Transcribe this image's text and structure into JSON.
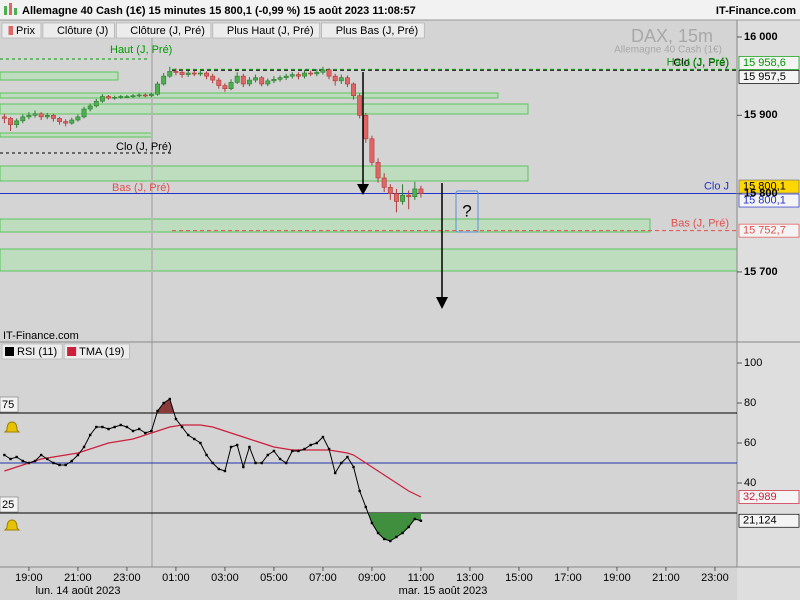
{
  "header": {
    "title": "Allemagne 40 Cash (1€) 15 minutes 15 800,1 (-0,99 %) 15 août 2023 11:08:57",
    "brand": "IT-Finance.com"
  },
  "annotations": {
    "question_mark": "?",
    "previous_day_labels": [
      "Haut (J, Pré)",
      "Clo (J, Pré)",
      "Bas (J, Pré)"
    ]
  },
  "chart_data": [
    {
      "type": "candlestick",
      "watermark": "DAX, 15m",
      "subwatermark": "Allemagne 40 Cash (1€)",
      "price_name": "Prix",
      "up_color": "#4caf50",
      "down_color": "#e06666",
      "last_value_label": "15 800,1",
      "last_color": "#ffd700",
      "x": [
        18,
        18.25,
        18.5,
        18.75,
        19,
        19.25,
        19.5,
        19.75,
        20,
        20.25,
        20.5,
        20.75,
        21,
        21.25,
        21.5,
        21.75,
        22,
        22.25,
        22.5,
        22.75,
        23,
        23.25,
        23.5,
        23.75,
        24,
        24.25,
        24.5,
        24.75,
        25,
        25.25,
        25.5,
        25.75,
        26,
        26.25,
        26.5,
        26.75,
        27,
        27.25,
        27.5,
        27.75,
        28,
        28.25,
        28.5,
        28.75,
        29,
        29.25,
        29.5,
        29.75,
        30,
        30.25,
        30.5,
        30.75,
        31,
        31.25,
        31.5,
        31.75,
        32,
        32.25,
        32.5,
        32.75,
        33,
        33.25,
        33.5,
        33.75,
        34,
        34.25,
        34.5,
        34.75,
        35
      ],
      "ohlc": [
        [
          15898,
          15902,
          15890,
          15896
        ],
        [
          15896,
          15898,
          15880,
          15888
        ],
        [
          15888,
          15896,
          15884,
          15893
        ],
        [
          15893,
          15901,
          15890,
          15898
        ],
        [
          15898,
          15904,
          15895,
          15900
        ],
        [
          15900,
          15906,
          15897,
          15902
        ],
        [
          15902,
          15904,
          15894,
          15898
        ],
        [
          15898,
          15903,
          15895,
          15900
        ],
        [
          15900,
          15902,
          15892,
          15896
        ],
        [
          15896,
          15898,
          15888,
          15892
        ],
        [
          15892,
          15895,
          15886,
          15890
        ],
        [
          15890,
          15897,
          15888,
          15894
        ],
        [
          15894,
          15901,
          15892,
          15898
        ],
        [
          15898,
          15911,
          15896,
          15908
        ],
        [
          15908,
          15915,
          15905,
          15912
        ],
        [
          15912,
          15921,
          15910,
          15918
        ],
        [
          15918,
          15927,
          15916,
          15924
        ],
        [
          15924,
          15926,
          15920,
          15922
        ],
        [
          15922,
          15925,
          15920,
          15923
        ],
        [
          15923,
          15926,
          15921,
          15924
        ],
        [
          15924,
          15926,
          15922,
          15924
        ],
        [
          15924,
          15927,
          15922,
          15925
        ],
        [
          15925,
          15928,
          15923,
          15926
        ],
        [
          15926,
          15928,
          15923,
          15925
        ],
        [
          15925,
          15929,
          15923,
          15927
        ],
        [
          15927,
          15943,
          15925,
          15940
        ],
        [
          15940,
          15954,
          15938,
          15950
        ],
        [
          15950,
          15962,
          15948,
          15956
        ],
        [
          15956,
          15960,
          15951,
          15955
        ],
        [
          15955,
          15958,
          15948,
          15952
        ],
        [
          15952,
          15957,
          15949,
          15954
        ],
        [
          15954,
          15957,
          15950,
          15953
        ],
        [
          15953,
          15958,
          15950,
          15954
        ],
        [
          15954,
          15956,
          15946,
          15950
        ],
        [
          15950,
          15953,
          15941,
          15945
        ],
        [
          15945,
          15948,
          15934,
          15938
        ],
        [
          15938,
          15941,
          15930,
          15934
        ],
        [
          15934,
          15946,
          15932,
          15942
        ],
        [
          15942,
          15955,
          15940,
          15950
        ],
        [
          15950,
          15953,
          15936,
          15940
        ],
        [
          15940,
          15949,
          15937,
          15945
        ],
        [
          15945,
          15952,
          15942,
          15948
        ],
        [
          15948,
          15950,
          15937,
          15940
        ],
        [
          15940,
          15947,
          15937,
          15944
        ],
        [
          15944,
          15950,
          15941,
          15946
        ],
        [
          15946,
          15951,
          15943,
          15948
        ],
        [
          15948,
          15953,
          15945,
          15950
        ],
        [
          15950,
          15955,
          15947,
          15952
        ],
        [
          15952,
          15955,
          15946,
          15950
        ],
        [
          15950,
          15958,
          15947,
          15954
        ],
        [
          15954,
          15957,
          15950,
          15953
        ],
        [
          15953,
          15959,
          15950,
          15955
        ],
        [
          15955,
          15962,
          15952,
          15958
        ],
        [
          15958,
          15960,
          15946,
          15950
        ],
        [
          15950,
          15953,
          15938,
          15944
        ],
        [
          15944,
          15952,
          15940,
          15948
        ],
        [
          15948,
          15951,
          15936,
          15940
        ],
        [
          15940,
          15942,
          15920,
          15925
        ],
        [
          15925,
          15928,
          15896,
          15900
        ],
        [
          15900,
          15903,
          15865,
          15870
        ],
        [
          15870,
          15874,
          15836,
          15840
        ],
        [
          15840,
          15845,
          15814,
          15820
        ],
        [
          15820,
          15826,
          15802,
          15808
        ],
        [
          15808,
          15812,
          15792,
          15800
        ],
        [
          15800,
          15806,
          15776,
          15790
        ],
        [
          15790,
          15812,
          15786,
          15798
        ],
        [
          15798,
          15804,
          15780,
          15796
        ],
        [
          15796,
          15815,
          15792,
          15806
        ],
        [
          15806,
          15810,
          15795,
          15800.1
        ]
      ],
      "levels": [
        {
          "name": "Clôture (J)",
          "label": "Clo J",
          "value": 15800.1,
          "value_label": "15 800,1",
          "color": "#2233cc",
          "style": "solid"
        },
        {
          "name": "Clôture (J, Pré)",
          "label": "Clo (J, Pré)",
          "value": 15957.5,
          "value_label": "15 957,5",
          "color": "#000000",
          "style": "dashed"
        },
        {
          "name": "Plus Haut (J, Pré)",
          "label": "Haut (J, Pré)",
          "value": 15958.6,
          "value_label": "15 958,6",
          "color": "#009900",
          "style": "dashed"
        },
        {
          "name": "Plus Bas (J, Pré)",
          "label": "Bas (J, Pré)",
          "value": 15752.7,
          "value_label": "15 752,7",
          "color": "#e05050",
          "style": "dashed"
        }
      ],
      "xlim": [
        17.82,
        47.9
      ],
      "ylim": [
        15610.5,
        16011.5
      ],
      "yticks": [
        {
          "value": 16000,
          "label": "16 000"
        },
        {
          "value": 15900,
          "label": "15 900"
        },
        {
          "value": 15800,
          "label": "15 800"
        },
        {
          "value": 15700,
          "label": "15 700"
        }
      ]
    },
    {
      "type": "line",
      "x": [
        18,
        18.25,
        18.5,
        18.75,
        19,
        19.25,
        19.5,
        19.75,
        20,
        20.25,
        20.5,
        20.75,
        21,
        21.25,
        21.5,
        21.75,
        22,
        22.25,
        22.5,
        22.75,
        23,
        23.25,
        23.5,
        23.75,
        24,
        24.25,
        24.5,
        24.75,
        25,
        25.25,
        25.5,
        25.75,
        26,
        26.25,
        26.5,
        26.75,
        27,
        27.25,
        27.5,
        27.75,
        28,
        28.25,
        28.5,
        28.75,
        29,
        29.25,
        29.5,
        29.75,
        30,
        30.25,
        30.5,
        30.75,
        31,
        31.25,
        31.5,
        31.75,
        32,
        32.25,
        32.5,
        32.75,
        33,
        33.25,
        33.5,
        33.75,
        34,
        34.25,
        34.5,
        34.75,
        35
      ],
      "series": [
        {
          "name": "RSI (11)",
          "color": "#000000",
          "last_value_label": "21,124",
          "values": [
            54,
            52,
            53,
            51,
            50,
            51,
            54,
            52,
            50,
            49,
            49,
            51,
            54,
            58,
            64,
            68,
            68,
            67,
            68,
            69,
            68,
            66,
            67,
            65,
            66,
            76,
            80,
            82,
            72,
            68,
            64,
            62,
            60,
            54,
            50,
            47,
            46,
            58,
            59,
            48,
            58,
            50,
            50,
            54,
            56,
            52,
            50,
            56,
            56,
            57,
            59,
            60,
            63,
            57,
            45,
            50,
            53,
            48,
            36,
            28,
            20,
            15,
            12,
            11,
            13,
            15,
            18,
            22,
            21.124
          ]
        },
        {
          "name": "TMA (19)",
          "color": "#cc1f3c",
          "last_value_label": "32,989",
          "values": [
            46,
            47,
            48,
            49,
            50,
            51,
            52,
            52.5,
            53,
            53.5,
            54,
            54.5,
            55,
            56,
            57,
            58,
            59,
            60,
            60.5,
            61,
            61.5,
            62,
            63,
            64,
            65,
            66,
            67,
            68,
            68.5,
            69,
            69,
            69,
            69,
            68.5,
            68,
            67,
            66,
            65,
            64,
            63,
            62,
            61,
            60,
            59,
            58,
            57.5,
            57,
            56.5,
            56.5,
            56.5,
            56.5,
            56.5,
            56.5,
            56.5,
            56,
            55.5,
            55,
            54,
            52,
            50,
            48,
            46,
            44,
            42,
            40,
            38,
            36,
            34.5,
            32.989
          ]
        }
      ],
      "levels": [
        75,
        25
      ],
      "midline": 50,
      "midline_color": "#2233aa",
      "overbought_color": "#8b3a3a",
      "oversold_color": "#3f8f3f",
      "xlim": [
        17.82,
        47.9
      ],
      "ylim": [
        -2,
        110
      ],
      "yticks": [
        100,
        80,
        60,
        40
      ],
      "xticks": [
        {
          "value": 19,
          "label": "19:00"
        },
        {
          "value": 21,
          "label": "21:00"
        },
        {
          "value": 23,
          "label": "23:00"
        },
        {
          "value": 25,
          "label": "01:00"
        },
        {
          "value": 27,
          "label": "03:00"
        },
        {
          "value": 29,
          "label": "05:00"
        },
        {
          "value": 31,
          "label": "07:00"
        },
        {
          "value": 33,
          "label": "09:00"
        },
        {
          "value": 35,
          "label": "11:00"
        },
        {
          "value": 37,
          "label": "13:00"
        },
        {
          "value": 39,
          "label": "15:00"
        },
        {
          "value": 41,
          "label": "17:00"
        },
        {
          "value": 43,
          "label": "19:00"
        },
        {
          "value": 45,
          "label": "21:00"
        },
        {
          "value": 47,
          "label": "23:00"
        }
      ],
      "dates": [
        "lun. 14 août 2023",
        "mar. 15 août 2023"
      ]
    }
  ]
}
